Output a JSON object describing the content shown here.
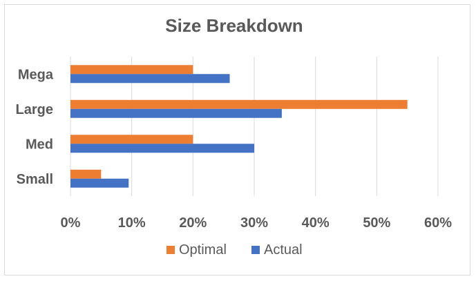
{
  "chart_data": {
    "type": "bar",
    "orientation": "horizontal",
    "title": "Size Breakdown",
    "categories": [
      "Small",
      "Med",
      "Large",
      "Mega"
    ],
    "series": [
      {
        "name": "Optimal",
        "color": "#ED7D31",
        "values": [
          5,
          20,
          55,
          20
        ]
      },
      {
        "name": "Actual",
        "color": "#4472C4",
        "values": [
          9.5,
          30,
          34.5,
          26
        ]
      }
    ],
    "xlim": [
      0,
      60
    ],
    "xticks": [
      0,
      10,
      20,
      30,
      40,
      50,
      60
    ],
    "tick_format": "percent",
    "grid": true,
    "legend_position": "bottom"
  }
}
